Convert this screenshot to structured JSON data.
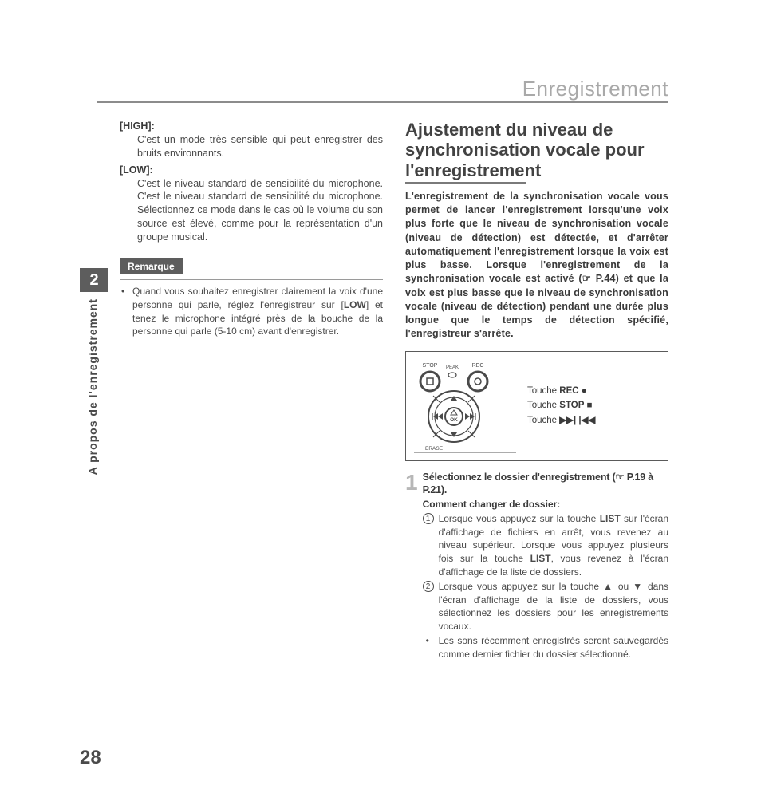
{
  "header": {
    "title": "Enregistrement"
  },
  "tab": {
    "number": "2",
    "vertical_label": "A propos de l'enregistrement",
    "page_number": "28"
  },
  "left": {
    "high_label": "[HIGH]:",
    "high_desc": "C'est un mode très sensible qui peut enregistrer des bruits environnants.",
    "low_label": "[LOW]:",
    "low_desc": "C'est le niveau standard de sensibilité du microphone. C'est le niveau standard de sensibilité du microphone. Sélectionnez ce mode dans le cas où le volume du son source est élevé, comme pour la représentation d'un groupe musical.",
    "note_label": "Remarque",
    "note_item": "Quand vous souhaitez enregistrer clairement la voix d'une personne qui parle, réglez l'enregistreur sur [LOW] et tenez le microphone intégré près de la bouche de la personne qui parle (5-10 cm) avant d'enregistrer."
  },
  "right": {
    "heading": "Ajustement du niveau de synchronisation vocale pour l'enregistrement",
    "intro": "L'enregistrement de la synchronisation vocale vous permet de lancer l'enregistrement lorsqu'une voix plus forte que le niveau de synchronisation vocale (niveau de détection) est détectée, et d'arrêter automatiquement l'enregistrement lorsque la voix est plus basse. Lorsque l'enregistrement de la synchronisation vocale est activé (☞ P.44) et que la voix est plus basse que le niveau de synchronisation vocale (niveau de détection) pendant une durée plus longue que le temps de détection spécifié, l'enregistreur s'arrête.",
    "device": {
      "labels": {
        "stop": "STOP",
        "peak": "PEAK",
        "rec": "REC",
        "erase": "ERASE",
        "ok": "OK"
      },
      "touches": {
        "rec": "Touche REC ●",
        "stop": "Touche STOP ■",
        "nav": "Touche ▶▶| |◀◀"
      }
    },
    "step": {
      "number": "1",
      "title": "Sélectionnez le dossier d'enregistrement (☞ P.19 à P.21).",
      "subtitle": "Comment changer de dossier:",
      "item1": "Lorsque vous appuyez sur la touche LIST sur l'écran d'affichage de fichiers en arrêt, vous revenez au niveau supérieur. Lorsque vous appuyez plusieurs fois sur la touche LIST, vous revenez à l'écran d'affichage de la liste de dossiers.",
      "item2": "Lorsque vous appuyez sur la touche ▲ ou ▼ dans l'écran d'affichage de la liste de dossiers, vous sélectionnez les dossiers pour les enregistrements vocaux.",
      "bullet": "Les sons récemment enregistrés seront sauvegardés comme dernier fichier du dossier sélectionné."
    }
  }
}
